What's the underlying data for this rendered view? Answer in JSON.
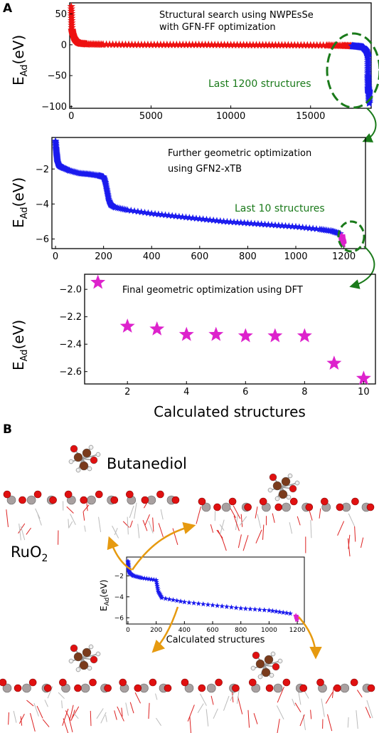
{
  "panel_a": {
    "letter": "A",
    "xlabel": "Calculated structures",
    "ylabel_main": "E",
    "ylabel_sub": "Ad",
    "ylabel_unit": "(eV)"
  },
  "panel_b": {
    "letter": "B",
    "molecule_label": "Butanediol",
    "surface_label_main": "RuO",
    "surface_label_sub": "2",
    "inset_xlabel": "Calculated structures",
    "inset_ylabel_main": "E",
    "inset_ylabel_sub": "Ad",
    "inset_ylabel_unit": "(eV)"
  },
  "chart_data": [
    {
      "type": "scatter",
      "annotation_1": "Structural search using NWPEsSe",
      "annotation_2": "with GFN-FF optimization",
      "callout": "Last 1200 structures",
      "xlim": [
        -100,
        18800
      ],
      "ylim": [
        -103,
        68
      ],
      "xticks": [
        0,
        5000,
        10000,
        15000
      ],
      "yticks": [
        -100,
        -50,
        0,
        50
      ],
      "series": [
        {
          "color": "#ee1111",
          "marker": "star",
          "points": [
            [
              0,
              62
            ],
            [
              40,
              24
            ],
            [
              80,
              18
            ],
            [
              150,
              12
            ],
            [
              250,
              8
            ],
            [
              400,
              4
            ],
            [
              600,
              2
            ],
            [
              1000,
              1
            ],
            [
              2000,
              0.5
            ],
            [
              4000,
              0
            ],
            [
              6000,
              0
            ],
            [
              8000,
              0
            ],
            [
              10000,
              -0.3
            ],
            [
              12000,
              -0.5
            ],
            [
              14000,
              -0.7
            ],
            [
              16000,
              -1
            ],
            [
              17000,
              -1.5
            ],
            [
              17600,
              -2
            ]
          ]
        },
        {
          "color": "#1a1aee",
          "marker": "star",
          "points": [
            [
              17600,
              -2
            ],
            [
              18000,
              -3
            ],
            [
              18300,
              -4
            ],
            [
              18500,
              -10
            ],
            [
              18600,
              -20
            ],
            [
              18600,
              -50
            ],
            [
              18620,
              -70
            ],
            [
              18650,
              -80
            ],
            [
              18660,
              -75
            ],
            [
              18680,
              -95
            ]
          ]
        }
      ]
    },
    {
      "type": "scatter",
      "annotation_1": "Further geometric optimization",
      "annotation_2": "using GFN2-xTB",
      "callout": "Last 10 structures",
      "xlim": [
        -15,
        1290
      ],
      "ylim": [
        -6.55,
        -0.2
      ],
      "xticks": [
        0,
        200,
        400,
        600,
        800,
        1000,
        1200
      ],
      "yticks": [
        -6,
        -4,
        -2
      ],
      "series": [
        {
          "color": "#1a1aee",
          "marker": "star",
          "points": [
            [
              0,
              -0.4
            ],
            [
              2,
              -0.8
            ],
            [
              4,
              -1.1
            ],
            [
              6,
              -1.35
            ],
            [
              8,
              -1.6
            ],
            [
              12,
              -1.75
            ],
            [
              20,
              -1.85
            ],
            [
              35,
              -1.95
            ],
            [
              60,
              -2.1
            ],
            [
              100,
              -2.25
            ],
            [
              140,
              -2.3
            ],
            [
              180,
              -2.38
            ],
            [
              200,
              -2.45
            ],
            [
              208,
              -2.8
            ],
            [
              215,
              -3.3
            ],
            [
              222,
              -3.8
            ],
            [
              230,
              -4.05
            ],
            [
              250,
              -4.2
            ],
            [
              300,
              -4.35
            ],
            [
              400,
              -4.55
            ],
            [
              500,
              -4.7
            ],
            [
              600,
              -4.85
            ],
            [
              700,
              -5.0
            ],
            [
              800,
              -5.1
            ],
            [
              900,
              -5.2
            ],
            [
              1000,
              -5.3
            ],
            [
              1100,
              -5.45
            ],
            [
              1150,
              -5.55
            ],
            [
              1185,
              -5.7
            ]
          ]
        },
        {
          "color": "#dd22cc",
          "marker": "star",
          "points": [
            [
              1191,
              -5.8
            ],
            [
              1192,
              -5.95
            ],
            [
              1193,
              -6.05
            ],
            [
              1194,
              -6.1
            ],
            [
              1195,
              -6.15
            ],
            [
              1196,
              -6.2
            ],
            [
              1197,
              -6.3
            ]
          ]
        }
      ]
    },
    {
      "type": "scatter",
      "annotation_1": "Final geometric optimization using DFT",
      "xlabel": "Calculated structures",
      "xlim": [
        0.55,
        10.4
      ],
      "ylim": [
        -2.69,
        -1.89
      ],
      "xticks": [
        2,
        4,
        6,
        8,
        10
      ],
      "yticks": [
        -2.6,
        -2.4,
        -2.2,
        -2.0
      ],
      "series": [
        {
          "color": "#dd22cc",
          "marker": "star",
          "x": [
            1,
            2,
            3,
            4,
            5,
            6,
            7,
            8,
            9,
            10
          ],
          "y": [
            -1.95,
            -2.27,
            -2.29,
            -2.33,
            -2.33,
            -2.34,
            -2.34,
            -2.34,
            -2.54,
            -2.65
          ]
        }
      ]
    },
    {
      "type": "scatter",
      "xlabel": "Calculated structures",
      "xlim": [
        -10,
        1250
      ],
      "ylim": [
        -6.6,
        -0.2
      ],
      "xticks": [
        0,
        200,
        400,
        600,
        800,
        1000,
        1200
      ],
      "yticks": [
        -6,
        -4,
        -2
      ],
      "series": [
        {
          "color": "#1a1aee",
          "marker": "star",
          "points": [
            [
              0,
              -0.6
            ],
            [
              5,
              -1.3
            ],
            [
              10,
              -1.7
            ],
            [
              40,
              -2.0
            ],
            [
              100,
              -2.2
            ],
            [
              200,
              -2.4
            ],
            [
              215,
              -3.5
            ],
            [
              240,
              -4.1
            ],
            [
              400,
              -4.5
            ],
            [
              600,
              -4.8
            ],
            [
              800,
              -5.1
            ],
            [
              1000,
              -5.3
            ],
            [
              1150,
              -5.6
            ]
          ]
        },
        {
          "color": "#dd22cc",
          "marker": "star",
          "points": [
            [
              1190,
              -5.8
            ],
            [
              1195,
              -6.0
            ],
            [
              1198,
              -6.2
            ]
          ]
        }
      ]
    }
  ]
}
